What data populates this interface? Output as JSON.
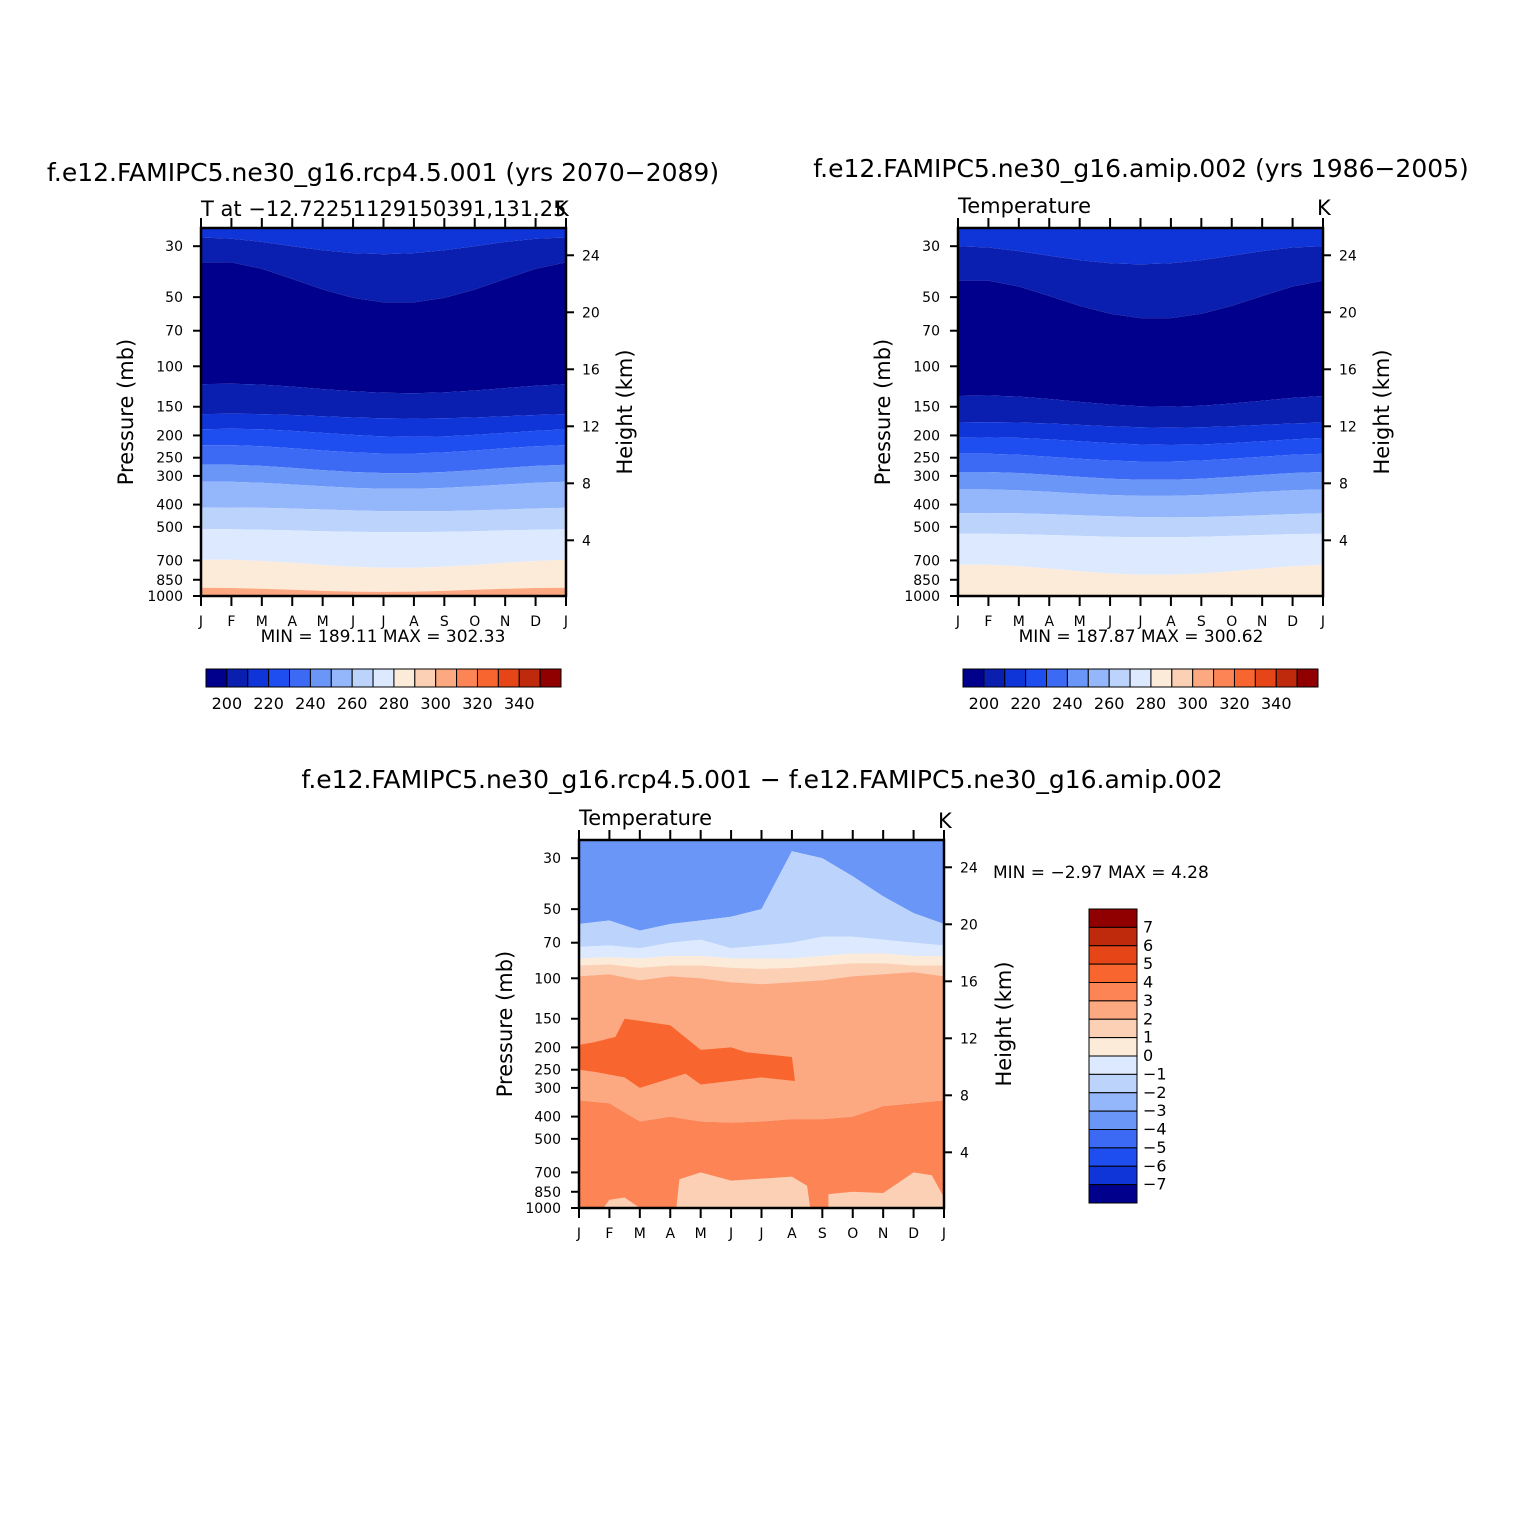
{
  "panels": [
    {
      "title": "f.e12.FAMIPC5.ne30_g16.rcp4.5.001 (yrs 2070−2089)",
      "subtitle": "T at −12.72251129150391,131.25",
      "units": "K",
      "ylabel_left": "Pressure (mb)",
      "ylabel_right": "Height (km)",
      "stats": "MIN = 189.11 MAX = 302.33",
      "colorbar_labels": [
        "200",
        "220",
        "240",
        "260",
        "280",
        "300",
        "320",
        "340"
      ]
    },
    {
      "title": "f.e12.FAMIPC5.ne30_g16.amip.002 (yrs 1986−2005)",
      "subtitle": "Temperature",
      "units": "K",
      "ylabel_left": "Pressure (mb)",
      "ylabel_right": "Height (km)",
      "stats": "MIN = 187.87 MAX = 300.62",
      "colorbar_labels": [
        "200",
        "220",
        "240",
        "260",
        "280",
        "300",
        "320",
        "340"
      ]
    },
    {
      "title": "f.e12.FAMIPC5.ne30_g16.rcp4.5.001 − f.e12.FAMIPC5.ne30_g16.amip.002",
      "subtitle": "Temperature",
      "units": "K",
      "ylabel_left": "Pressure (mb)",
      "ylabel_right": "Height (km)",
      "stats": "MIN = −2.97 MAX = 4.28",
      "colorbar_labels": [
        "7",
        "6",
        "5",
        "4",
        "3",
        "2",
        "1",
        "0",
        "−1",
        "−2",
        "−3",
        "−4",
        "−5",
        "−6",
        "−7"
      ]
    }
  ],
  "chart_data": [
    {
      "type": "heatmap",
      "x_ticks": [
        "J",
        "F",
        "M",
        "A",
        "M",
        "J",
        "J",
        "A",
        "S",
        "O",
        "N",
        "D",
        "J"
      ],
      "y_ticks_pressure": [
        "30",
        "50",
        "70",
        "100",
        "150",
        "200",
        "250",
        "300",
        "400",
        "500",
        "700",
        "850",
        "1000"
      ],
      "y_ticks_height": [
        "24",
        "20",
        "16",
        "12",
        "8",
        "4"
      ],
      "ylim_pressure": [
        1000,
        25
      ],
      "y_scale": "log",
      "grid": false,
      "levels": [
        190,
        200,
        210,
        220,
        230,
        240,
        250,
        260,
        270,
        280,
        290,
        300,
        310,
        320,
        330,
        340,
        350
      ],
      "level_colors": [
        "#00008c",
        "#0a1fb0",
        "#0f35d8",
        "#1e4df0",
        "#3d6af5",
        "#6a96f8",
        "#94b6fa",
        "#bcd4fc",
        "#dde9fe",
        "#fdebd9",
        "#fcd0b5",
        "#fca982",
        "#fc8455",
        "#f9652f",
        "#e64518",
        "#bf2a0d",
        "#900000"
      ]
    },
    {
      "type": "heatmap",
      "x_ticks": [
        "J",
        "F",
        "M",
        "A",
        "M",
        "J",
        "J",
        "A",
        "S",
        "O",
        "N",
        "D",
        "J"
      ],
      "y_ticks_pressure": [
        "30",
        "50",
        "70",
        "100",
        "150",
        "200",
        "250",
        "300",
        "400",
        "500",
        "700",
        "850",
        "1000"
      ],
      "y_ticks_height": [
        "24",
        "20",
        "16",
        "12",
        "8",
        "4"
      ],
      "ylim_pressure": [
        1000,
        25
      ],
      "y_scale": "log",
      "grid": false,
      "levels": [
        190,
        200,
        210,
        220,
        230,
        240,
        250,
        260,
        270,
        280,
        290,
        300,
        310,
        320,
        330,
        340,
        350
      ],
      "level_colors": [
        "#00008c",
        "#0a1fb0",
        "#0f35d8",
        "#1e4df0",
        "#3d6af5",
        "#6a96f8",
        "#94b6fa",
        "#bcd4fc",
        "#dde9fe",
        "#fdebd9",
        "#fcd0b5",
        "#fca982",
        "#fc8455",
        "#f9652f",
        "#e64518",
        "#bf2a0d",
        "#900000"
      ]
    },
    {
      "type": "heatmap",
      "x_ticks": [
        "J",
        "F",
        "M",
        "A",
        "M",
        "J",
        "J",
        "A",
        "S",
        "O",
        "N",
        "D",
        "J"
      ],
      "y_ticks_pressure": [
        "30",
        "50",
        "70",
        "100",
        "150",
        "200",
        "250",
        "300",
        "400",
        "500",
        "700",
        "850",
        "1000"
      ],
      "y_ticks_height": [
        "24",
        "20",
        "16",
        "12",
        "8",
        "4"
      ],
      "ylim_pressure": [
        1000,
        25
      ],
      "y_scale": "log",
      "grid": false,
      "levels": [
        7,
        6,
        5,
        4,
        3,
        2,
        1,
        0,
        -1,
        -2,
        -3,
        -4,
        -5,
        -6,
        -7
      ],
      "level_colors": [
        "#900000",
        "#bf2a0d",
        "#e64518",
        "#f9652f",
        "#fc8455",
        "#fca982",
        "#fcd0b5",
        "#fdebd9",
        "#dde9fe",
        "#bcd4fc",
        "#94b6fa",
        "#6a96f8",
        "#3d6af5",
        "#1e4df0",
        "#0f35d8",
        "#00008c"
      ]
    }
  ]
}
